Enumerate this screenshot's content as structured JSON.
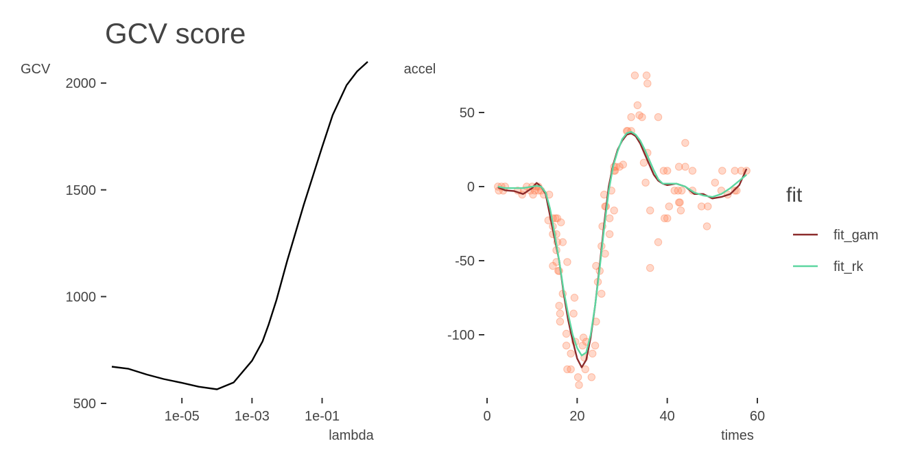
{
  "chart_data": [
    {
      "type": "line",
      "title": "GCV score",
      "xlabel": "lambda",
      "ylabel": "GCV",
      "x_scale": "log10",
      "xlim": [
        1e-07,
        3
      ],
      "ylim": [
        500,
        2100
      ],
      "x_ticks": [
        1e-05,
        0.001,
        0.1
      ],
      "x_tick_labels": [
        "1e-05",
        "1e-03",
        "1e-01"
      ],
      "y_ticks": [
        500,
        1000,
        1500,
        2000
      ],
      "y_tick_labels": [
        "500",
        "1000",
        "1500",
        "2000"
      ],
      "grid": false,
      "series": [
        {
          "color": "#000000",
          "x": [
            1e-07,
            3e-07,
            1e-06,
            3e-06,
            1e-05,
            3e-05,
            0.0001,
            0.0003,
            0.001,
            0.002,
            0.003,
            0.005,
            0.01,
            0.03,
            0.1,
            0.2,
            0.5,
            1,
            2
          ],
          "y": [
            672,
            662,
            635,
            614,
            596,
            578,
            566,
            598,
            700,
            790,
            870,
            985,
            1165,
            1430,
            1700,
            1850,
            1990,
            2055,
            2100
          ]
        }
      ]
    },
    {
      "type": "scatter+line",
      "title": "",
      "xlabel": "times",
      "ylabel": "accel",
      "xlim": [
        0,
        62
      ],
      "ylim": [
        -140,
        78
      ],
      "x_ticks": [
        0,
        20,
        40,
        60
      ],
      "x_tick_labels": [
        "0",
        "20",
        "40",
        "60"
      ],
      "y_ticks": [
        -100,
        -50,
        0,
        50
      ],
      "y_tick_labels": [
        "-100",
        "-50",
        "0",
        "50"
      ],
      "grid": false,
      "points": {
        "color": "#FF7F50",
        "opacity": 0.3,
        "x": [
          2.4,
          2.6,
          3.2,
          3.6,
          4.0,
          6.8,
          7.8,
          8.2,
          8.8,
          9.6,
          10.0,
          10.2,
          10.6,
          11.0,
          11.4,
          11.4,
          12.0,
          12.6,
          13.6,
          13.8,
          14.6,
          14.6,
          14.6,
          14.6,
          15.2,
          15.4,
          15.4,
          15.4,
          15.6,
          15.6,
          15.8,
          16.0,
          16.0,
          16.2,
          16.2,
          16.4,
          16.8,
          16.8,
          17.6,
          17.6,
          17.8,
          17.8,
          18.6,
          18.6,
          19.2,
          19.4,
          19.6,
          20.2,
          20.4,
          21.2,
          21.4,
          21.6,
          21.8,
          22.0,
          23.2,
          23.4,
          24.0,
          24.2,
          24.2,
          24.6,
          25.0,
          25.4,
          25.4,
          25.6,
          26.0,
          26.2,
          26.2,
          26.4,
          27.2,
          27.2,
          27.6,
          28.2,
          28.2,
          28.2,
          28.4,
          28.6,
          29.4,
          30.2,
          31.0,
          31.2,
          32.0,
          32.0,
          32.8,
          33.4,
          33.8,
          34.4,
          34.8,
          35.2,
          35.4,
          35.6,
          35.6,
          36.2,
          36.2,
          38.0,
          38.0,
          39.2,
          39.4,
          40.0,
          40.0,
          40.4,
          41.6,
          42.4,
          42.6,
          42.6,
          42.8,
          43.0,
          43.2,
          44.0,
          44.0,
          45.6,
          45.6,
          47.6,
          48.8,
          49.0,
          50.6,
          52.0,
          52.2,
          53.4,
          55.0,
          55.0,
          55.4,
          56.4,
          57.6
        ],
        "y": [
          0.0,
          -2.7,
          0.0,
          -2.7,
          0.0,
          -2.7,
          -5.4,
          -2.7,
          0.0,
          -2.7,
          0.0,
          -5.4,
          -2.7,
          0.0,
          0.0,
          -2.7,
          -2.7,
          -5.4,
          -22.8,
          -5.4,
          -32.1,
          -53.5,
          -21.4,
          -26.8,
          -21.4,
          -32.1,
          -50.9,
          -42.9,
          -21.4,
          -37.5,
          -56.9,
          -80.4,
          -56.9,
          -85.7,
          -91.1,
          -24.1,
          -37.5,
          -72.3,
          -99.3,
          -107.3,
          -50.9,
          -123.3,
          -112.7,
          -123.3,
          -85.7,
          -75.0,
          -104.7,
          -128.6,
          -133.9,
          -107.3,
          -101.9,
          -115.4,
          -123.3,
          -104.7,
          -128.6,
          -112.7,
          -107.3,
          -91.1,
          -53.5,
          -64.3,
          -56.9,
          -72.3,
          -40.2,
          -26.8,
          -5.4,
          -13.4,
          -45.3,
          -13.4,
          -32.1,
          -21.4,
          -2.7,
          10.7,
          -16.1,
          13.4,
          10.7,
          13.4,
          13.4,
          14.8,
          37.5,
          37.5,
          37.5,
          46.9,
          75.0,
          54.9,
          48.2,
          46.9,
          16.1,
          2.7,
          75.0,
          69.6,
          22.8,
          -16.1,
          -54.9,
          -37.5,
          46.9,
          10.7,
          -21.4,
          10.7,
          -21.4,
          -13.4,
          -2.7,
          -2.7,
          -10.7,
          13.4,
          -10.7,
          -16.1,
          -2.7,
          13.4,
          29.5,
          10.7,
          -2.7,
          -13.4,
          -26.8,
          -13.4,
          2.7,
          -2.7,
          10.7,
          -5.4,
          -2.7,
          10.7,
          -2.7,
          10.7,
          10.7
        ]
      },
      "series": [
        {
          "name": "fit_gam",
          "color": "#8B2A2A",
          "x": [
            2.4,
            4,
            6,
            8,
            10,
            11,
            12,
            13,
            14,
            15,
            16,
            17,
            18,
            19,
            20,
            21,
            22,
            23,
            24,
            25,
            26,
            27,
            28,
            29,
            30,
            31,
            32,
            33,
            34,
            35,
            36,
            37,
            38,
            39,
            40,
            42,
            44,
            46,
            48,
            50,
            52,
            54,
            56,
            57.6
          ],
          "y": [
            -0.5,
            -2.5,
            -3,
            -5,
            -1,
            2.5,
            0,
            -5,
            -20,
            -35,
            -50,
            -72,
            -90,
            -104,
            -116,
            -122,
            -117,
            -102,
            -80,
            -53,
            -25,
            0,
            15,
            25,
            31,
            35,
            36,
            34,
            29,
            22,
            15,
            8,
            4,
            2,
            1,
            2,
            0,
            -5,
            -5,
            -8,
            -7,
            -5,
            1,
            12
          ]
        },
        {
          "name": "fit_rk",
          "color": "#5CD6A0",
          "x": [
            2.4,
            4,
            6,
            8,
            10,
            11,
            12,
            13,
            14,
            15,
            16,
            17,
            18,
            19,
            20,
            21,
            22,
            23,
            24,
            25,
            26,
            27,
            28,
            29,
            30,
            31,
            32,
            33,
            34,
            35,
            36,
            37,
            38,
            39,
            40,
            42,
            44,
            46,
            48,
            50,
            52,
            54,
            56,
            57.6
          ],
          "y": [
            0,
            -1,
            -1,
            -1,
            0,
            0.5,
            0,
            -4,
            -15,
            -32,
            -50,
            -70,
            -86,
            -100,
            -109,
            -114,
            -112,
            -100,
            -80,
            -55,
            -28,
            -3,
            14,
            24,
            32,
            36,
            37,
            35,
            31,
            25,
            18,
            11,
            5,
            2,
            2,
            2,
            0,
            -4,
            -6,
            -7,
            -5,
            -1,
            4,
            8
          ]
        }
      ],
      "legend": {
        "title": "fit",
        "placement": "right",
        "entries": [
          "fit_gam",
          "fit_rk"
        ]
      }
    }
  ]
}
